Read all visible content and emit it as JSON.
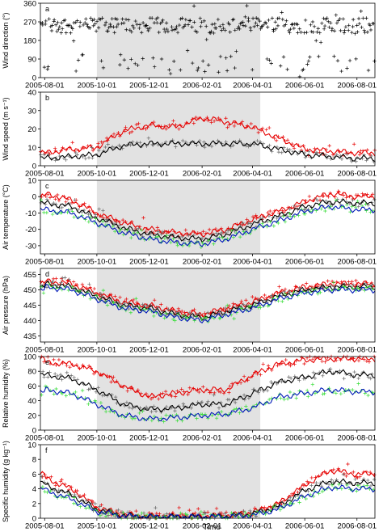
{
  "figure": {
    "x_axis_title": "Time",
    "x_ticks": [
      "2005-08-01",
      "2005-10-01",
      "2005-12-01",
      "2006-02-01",
      "2006-04-01",
      "2006-06-01",
      "2006-08-01"
    ],
    "shaded_period": [
      "2005-10-01",
      "2006-04-10"
    ],
    "colors": {
      "black": "#000000",
      "red": "#e60000",
      "blue": "#0018b8",
      "green": "#33dd33",
      "shade": "#e2e2e2"
    }
  },
  "chart_data": [
    {
      "panel": "a",
      "type": "scatter",
      "ylabel": "Wind direction (°)",
      "yticks": [
        0,
        90,
        180,
        270,
        360
      ],
      "ylim": [
        0,
        360
      ],
      "series": [
        {
          "color": "black",
          "marker": "+",
          "x": [
            "2005-08-01",
            "2005-09-01",
            "2005-10-01",
            "2005-11-01",
            "2005-12-01",
            "2006-01-01",
            "2006-02-01",
            "2006-03-01",
            "2006-04-01",
            "2006-05-01",
            "2006-06-01",
            "2006-07-01",
            "2006-08-01"
          ],
          "y": [
            250,
            250,
            255,
            255,
            250,
            250,
            250,
            255,
            255,
            250,
            250,
            250,
            250
          ]
        }
      ]
    },
    {
      "panel": "b",
      "type": "line",
      "ylabel": "Wind speed (m s⁻¹)",
      "yticks": [
        0,
        10,
        20,
        30,
        40
      ],
      "ylim": [
        0,
        40
      ],
      "series": [
        {
          "color": "red",
          "x": [
            "2005-08-01",
            "2005-09-01",
            "2005-10-01",
            "2005-11-01",
            "2005-12-01",
            "2006-01-01",
            "2006-02-01",
            "2006-03-01",
            "2006-04-01",
            "2006-05-01",
            "2006-06-01",
            "2006-07-01",
            "2006-08-01"
          ],
          "y": [
            7,
            9,
            10,
            19,
            22,
            21,
            26,
            24,
            21,
            15,
            9,
            8,
            7
          ]
        },
        {
          "color": "black",
          "x": [
            "2005-08-01",
            "2005-09-01",
            "2005-10-01",
            "2005-11-01",
            "2005-12-01",
            "2006-01-01",
            "2006-02-01",
            "2006-03-01",
            "2006-04-01",
            "2006-05-01",
            "2006-06-01",
            "2006-07-01",
            "2006-08-01"
          ],
          "y": [
            4,
            5,
            6,
            11,
            12,
            12,
            12,
            12,
            12,
            9,
            6,
            5,
            4
          ]
        }
      ]
    },
    {
      "panel": "c",
      "type": "line",
      "ylabel": "Air temperature (°C)",
      "yticks": [
        -30,
        -20,
        -10,
        0,
        10
      ],
      "ylim": [
        -35,
        10
      ],
      "series": [
        {
          "color": "red",
          "x": [
            "2005-08-01",
            "2005-09-01",
            "2005-10-01",
            "2005-11-01",
            "2005-12-01",
            "2006-01-01",
            "2006-02-01",
            "2006-03-01",
            "2006-04-01",
            "2006-05-01",
            "2006-06-01",
            "2006-07-01",
            "2006-08-01"
          ],
          "y": [
            2,
            -2,
            -10,
            -16,
            -20,
            -22,
            -23,
            -20,
            -14,
            -9,
            -3,
            2,
            0
          ]
        },
        {
          "color": "black",
          "x": [
            "2005-08-01",
            "2005-09-01",
            "2005-10-01",
            "2005-11-01",
            "2005-12-01",
            "2006-01-01",
            "2006-02-01",
            "2006-03-01",
            "2006-04-01",
            "2006-05-01",
            "2006-06-01",
            "2006-07-01",
            "2006-08-01"
          ],
          "y": [
            -4,
            -6,
            -13,
            -19,
            -23,
            -25,
            -26,
            -23,
            -17,
            -12,
            -6,
            -3,
            -4
          ]
        },
        {
          "color": "blue",
          "x": [
            "2005-08-01",
            "2005-09-01",
            "2005-10-01",
            "2005-11-01",
            "2005-12-01",
            "2006-01-01",
            "2006-02-01",
            "2006-03-01",
            "2006-04-01",
            "2006-05-01",
            "2006-06-01",
            "2006-07-01",
            "2006-08-01"
          ],
          "y": [
            -8,
            -10,
            -16,
            -22,
            -26,
            -28,
            -29,
            -26,
            -20,
            -15,
            -9,
            -6,
            -8
          ]
        }
      ]
    },
    {
      "panel": "d",
      "type": "line",
      "ylabel": "Air pressure (hPa)",
      "yticks": [
        435,
        440,
        445,
        450,
        455
      ],
      "ylim": [
        433,
        457
      ],
      "series": [
        {
          "color": "red",
          "x": [
            "2005-08-01",
            "2005-09-01",
            "2005-10-01",
            "2005-11-01",
            "2005-12-01",
            "2006-01-01",
            "2006-02-01",
            "2006-03-01",
            "2006-04-01",
            "2006-05-01",
            "2006-06-01",
            "2006-07-01",
            "2006-08-01"
          ],
          "y": [
            453,
            452,
            449,
            446,
            445,
            443,
            442,
            444,
            446,
            449,
            451,
            452,
            452
          ]
        },
        {
          "color": "black",
          "x": [
            "2005-08-01",
            "2005-09-01",
            "2005-10-01",
            "2005-11-01",
            "2005-12-01",
            "2006-01-01",
            "2006-02-01",
            "2006-03-01",
            "2006-04-01",
            "2006-05-01",
            "2006-06-01",
            "2006-07-01",
            "2006-08-01"
          ],
          "y": [
            452,
            451,
            448,
            445,
            444,
            442,
            441,
            443,
            445,
            448,
            450,
            451,
            451
          ]
        },
        {
          "color": "blue",
          "x": [
            "2005-08-01",
            "2005-09-01",
            "2005-10-01",
            "2005-11-01",
            "2005-12-01",
            "2006-01-01",
            "2006-02-01",
            "2006-03-01",
            "2006-04-01",
            "2006-05-01",
            "2006-06-01",
            "2006-07-01",
            "2006-08-01"
          ],
          "y": [
            451,
            450,
            447,
            444,
            443,
            441,
            440,
            442,
            444,
            447,
            449,
            450,
            450
          ]
        }
      ]
    },
    {
      "panel": "e",
      "type": "line",
      "ylabel": "Relative humidity (%)",
      "yticks": [
        0,
        20,
        40,
        60,
        80,
        100
      ],
      "ylim": [
        0,
        100
      ],
      "series": [
        {
          "color": "red",
          "x": [
            "2005-08-01",
            "2005-09-01",
            "2005-10-01",
            "2005-11-01",
            "2005-12-01",
            "2006-01-01",
            "2006-02-01",
            "2006-03-01",
            "2006-04-01",
            "2006-05-01",
            "2006-06-01",
            "2006-07-01",
            "2006-08-01"
          ],
          "y": [
            92,
            90,
            80,
            60,
            45,
            50,
            55,
            55,
            75,
            90,
            95,
            97,
            97
          ]
        },
        {
          "color": "black",
          "x": [
            "2005-08-01",
            "2005-09-01",
            "2005-10-01",
            "2005-11-01",
            "2005-12-01",
            "2006-01-01",
            "2006-02-01",
            "2006-03-01",
            "2006-04-01",
            "2006-05-01",
            "2006-06-01",
            "2006-07-01",
            "2006-08-01"
          ],
          "y": [
            75,
            70,
            55,
            35,
            28,
            30,
            35,
            35,
            50,
            65,
            72,
            80,
            75
          ]
        },
        {
          "color": "blue",
          "x": [
            "2005-08-01",
            "2005-09-01",
            "2005-10-01",
            "2005-11-01",
            "2005-12-01",
            "2006-01-01",
            "2006-02-01",
            "2006-03-01",
            "2006-04-01",
            "2006-05-01",
            "2006-06-01",
            "2006-07-01",
            "2006-08-01"
          ],
          "y": [
            55,
            50,
            35,
            20,
            15,
            17,
            20,
            22,
            30,
            45,
            50,
            55,
            52
          ]
        }
      ]
    },
    {
      "panel": "f",
      "type": "line",
      "ylabel": "Specific humidity (g kg⁻¹)",
      "yticks": [
        0,
        2,
        4,
        6,
        8,
        10
      ],
      "ylim": [
        0,
        10
      ],
      "series": [
        {
          "color": "red",
          "x": [
            "2005-08-01",
            "2005-09-01",
            "2005-10-01",
            "2005-11-01",
            "2005-12-01",
            "2006-01-01",
            "2006-02-01",
            "2006-03-01",
            "2006-04-01",
            "2006-05-01",
            "2006-06-01",
            "2006-07-01",
            "2006-08-01"
          ],
          "y": [
            5.5,
            4.0,
            1.5,
            0.5,
            0.3,
            0.3,
            0.3,
            0.4,
            0.8,
            2.0,
            4.5,
            6.5,
            6.0
          ]
        },
        {
          "color": "black",
          "x": [
            "2005-08-01",
            "2005-09-01",
            "2005-10-01",
            "2005-11-01",
            "2005-12-01",
            "2006-01-01",
            "2006-02-01",
            "2006-03-01",
            "2006-04-01",
            "2006-05-01",
            "2006-06-01",
            "2006-07-01",
            "2006-08-01"
          ],
          "y": [
            4.5,
            3.2,
            1.2,
            0.4,
            0.2,
            0.2,
            0.2,
            0.3,
            0.6,
            1.6,
            3.8,
            5.0,
            4.8
          ]
        },
        {
          "color": "blue",
          "x": [
            "2005-08-01",
            "2005-09-01",
            "2005-10-01",
            "2005-11-01",
            "2005-12-01",
            "2006-01-01",
            "2006-02-01",
            "2006-03-01",
            "2006-04-01",
            "2006-05-01",
            "2006-06-01",
            "2006-07-01",
            "2006-08-01"
          ],
          "y": [
            3.8,
            2.6,
            0.9,
            0.3,
            0.2,
            0.2,
            0.2,
            0.2,
            0.4,
            1.2,
            3.0,
            4.2,
            4.0
          ]
        }
      ]
    }
  ]
}
